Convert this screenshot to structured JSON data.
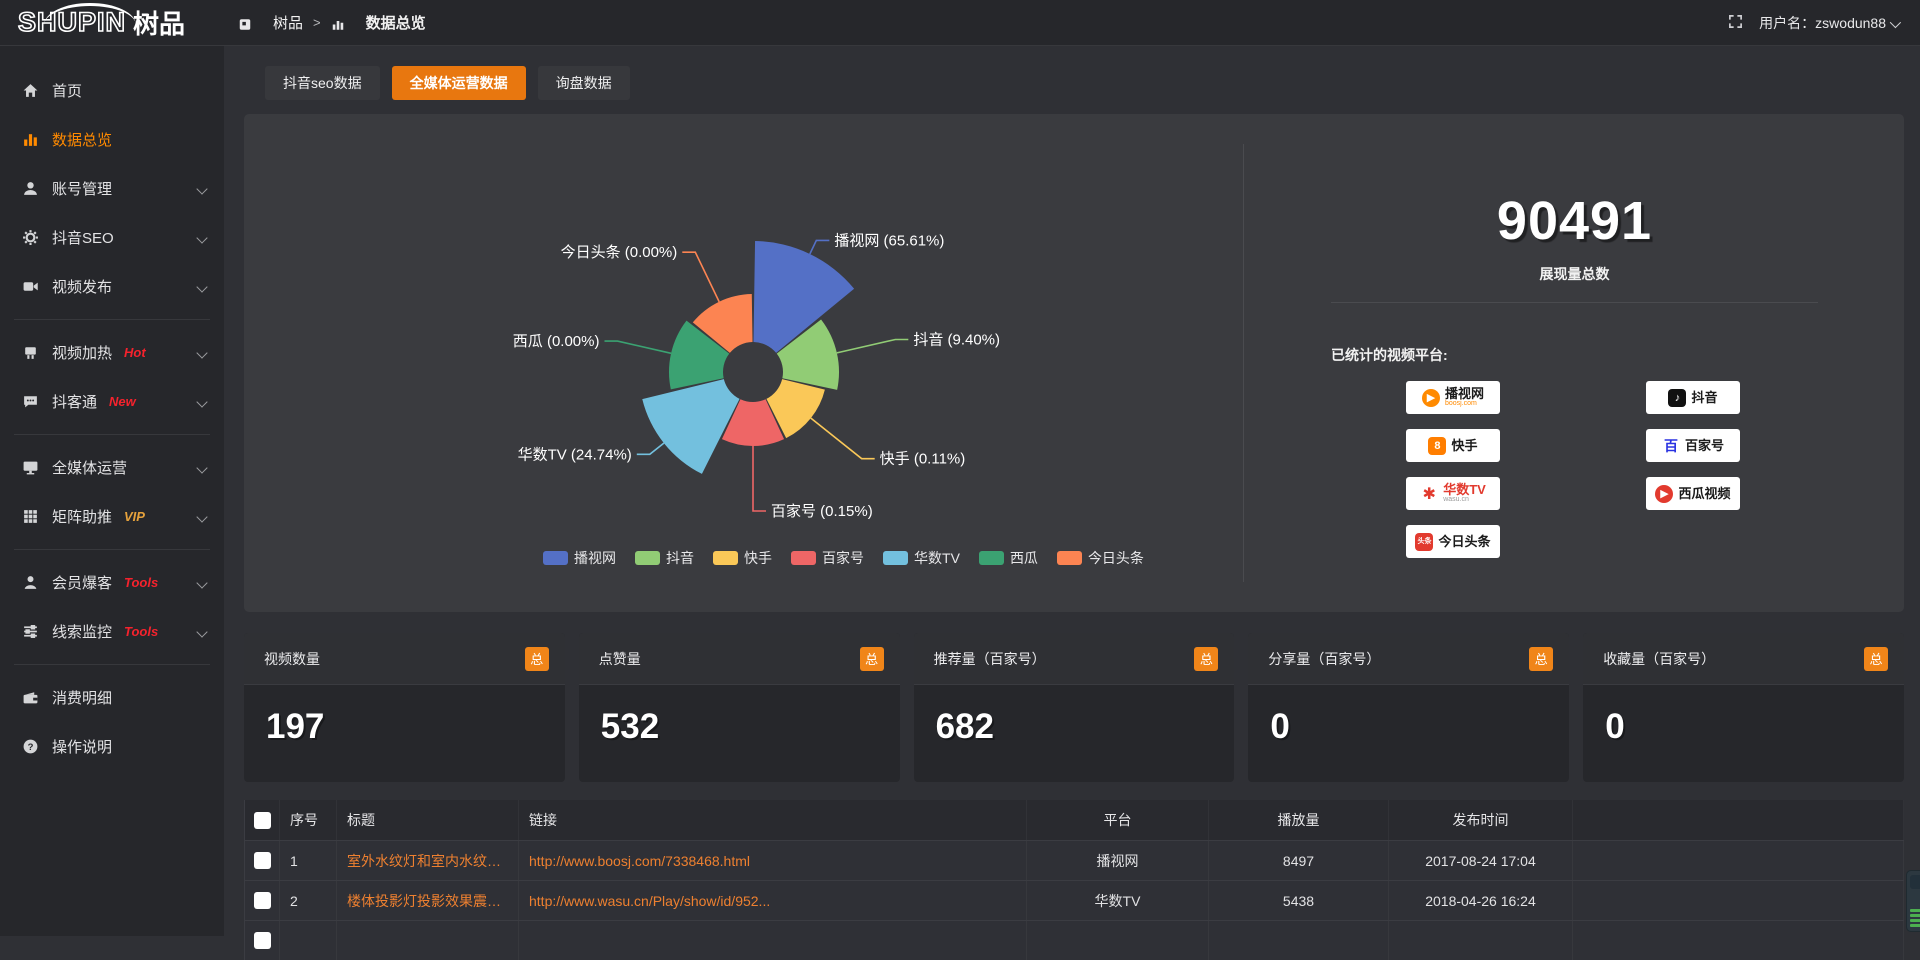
{
  "topbar": {
    "logo_en": "SHUPIN",
    "logo_cn": "树品",
    "breadcrumb": {
      "root": "树品",
      "separator": ">",
      "current": "数据总览"
    },
    "username": "用户名：zswodun88"
  },
  "sidebar": {
    "items": [
      {
        "label": "首页",
        "icon": "home-icon",
        "active": false,
        "expandable": false,
        "badge": ""
      },
      {
        "label": "数据总览",
        "icon": "bar-chart-icon",
        "active": true,
        "expandable": false,
        "badge": ""
      },
      {
        "label": "账号管理",
        "icon": "user-icon",
        "active": false,
        "expandable": true,
        "badge": ""
      },
      {
        "label": "抖音SEO",
        "icon": "gear-icon",
        "active": false,
        "expandable": true,
        "badge": ""
      },
      {
        "label": "视频发布",
        "icon": "video-icon",
        "active": false,
        "expandable": true,
        "badge": ""
      },
      {
        "label": "视频加热",
        "icon": "heat-icon",
        "active": false,
        "expandable": true,
        "badge": "Hot",
        "badge_color": "#F5222D"
      },
      {
        "label": "抖客通",
        "icon": "chat-icon",
        "active": false,
        "expandable": true,
        "badge": "New",
        "badge_color": "#F5222D"
      },
      {
        "label": "全媒体运营",
        "icon": "monitor-icon",
        "active": false,
        "expandable": true,
        "badge": ""
      },
      {
        "label": "矩阵助推",
        "icon": "grid-icon",
        "active": false,
        "expandable": true,
        "badge": "VIP",
        "badge_color": "#E6A23C"
      },
      {
        "label": "会员爆客",
        "icon": "member-icon",
        "active": false,
        "expandable": true,
        "badge": "Tools",
        "badge_color": "#F5222D"
      },
      {
        "label": "线索监控",
        "icon": "sliders-icon",
        "active": false,
        "expandable": true,
        "badge": "Tools",
        "badge_color": "#F5222D"
      },
      {
        "label": "消费明细",
        "icon": "wallet-icon",
        "active": false,
        "expandable": false,
        "badge": ""
      },
      {
        "label": "操作说明",
        "icon": "question-icon",
        "active": false,
        "expandable": false,
        "badge": ""
      }
    ]
  },
  "tabs": [
    {
      "label": "抖音seo数据",
      "active": false
    },
    {
      "label": "全媒体运营数据",
      "active": true
    },
    {
      "label": "询盘数据",
      "active": false
    }
  ],
  "colors": {
    "accent_orange": "#E8770F",
    "link_orange": "#EE8030",
    "sidebar_active": "#FF8A00",
    "badge_red": "#F5222D",
    "badge_gold": "#E6A23C",
    "panel_bg": "#3A3B3F"
  },
  "chart_data": {
    "type": "pie",
    "subtype": "nightingale-rose",
    "title": "",
    "total": 90491,
    "label_format": "{name} ({pct}%)",
    "legend_position": "bottom",
    "items": [
      {
        "name": "播视网",
        "pct": "65.61",
        "value": 65.61,
        "color": "#5470C6",
        "radius": 131
      },
      {
        "name": "抖音",
        "pct": "9.40",
        "value": 9.4,
        "color": "#91CC75",
        "radius": 86
      },
      {
        "name": "快手",
        "pct": "0.11",
        "value": 0.11,
        "color": "#FAC858",
        "radius": 74
      },
      {
        "name": "百家号",
        "pct": "0.15",
        "value": 0.15,
        "color": "#EE6666",
        "radius": 74
      },
      {
        "name": "华数TV",
        "pct": "24.74",
        "value": 24.74,
        "color": "#73C0DE",
        "radius": 114
      },
      {
        "name": "西瓜",
        "pct": "0.00",
        "value": 0.0,
        "color": "#3BA272",
        "radius": 84
      },
      {
        "name": "今日头条",
        "pct": "0.00",
        "value": 0.0,
        "color": "#FC8452",
        "radius": 78
      }
    ],
    "layout": {
      "center": [
        509,
        258
      ],
      "inner_radius": 30,
      "start_angle_deg": -90,
      "equal_angles": true,
      "pad_angle_deg": 1.8,
      "label_line_lengths": [
        15,
        60,
        65,
        65,
        18,
        55,
        55
      ]
    }
  },
  "summary": {
    "total_value": "90491",
    "total_label": "展现量总数",
    "platforms_label": "已统计的视频平台:",
    "platforms_left": [
      {
        "name": "播视网",
        "sub": "boosj.com"
      },
      {
        "name": "快手",
        "sub": ""
      },
      {
        "name": "华数TV",
        "sub": "wasu.cn"
      },
      {
        "name": "今日头条",
        "sub": ""
      }
    ],
    "platforms_right": [
      {
        "name": "抖音",
        "sub": ""
      },
      {
        "name": "百家号",
        "sub": ""
      },
      {
        "name": "西瓜视频",
        "sub": ""
      }
    ]
  },
  "stat_cards": [
    {
      "title": "视频数量",
      "badge": "总",
      "value": "197"
    },
    {
      "title": "点赞量",
      "badge": "总",
      "value": "532"
    },
    {
      "title": "推荐量（百家号）",
      "badge": "总",
      "value": "682"
    },
    {
      "title": "分享量（百家号）",
      "badge": "总",
      "value": "0"
    },
    {
      "title": "收藏量（百家号）",
      "badge": "总",
      "value": "0"
    }
  ],
  "table": {
    "columns": [
      "序号",
      "标题",
      "链接",
      "平台",
      "播放量",
      "发布时间"
    ],
    "rows": [
      {
        "index": "1",
        "title": "室外水纹灯和室内水纹灯的区别和简介",
        "link": "http://www.boosj.com/7338468.html",
        "platform": "播视网",
        "plays": "8497",
        "time": "2017-08-24 17:04"
      },
      {
        "index": "2",
        "title": "楼体投影灯投影效果震撼上市",
        "link": "http://www.wasu.cn/Play/show/id/952...",
        "platform": "华数TV",
        "plays": "5438",
        "time": "2018-04-26 16:24"
      }
    ]
  }
}
